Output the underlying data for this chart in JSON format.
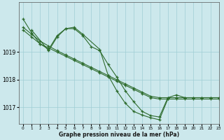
{
  "xlabel": "Graphe pression niveau de la mer (hPa)",
  "background_color": "#cce8ec",
  "grid_color": "#9fcdd4",
  "line_color": "#2d6b2d",
  "xlim": [
    -0.5,
    23
  ],
  "ylim": [
    1016.4,
    1020.8
  ],
  "yticks": [
    1017,
    1018,
    1019
  ],
  "xticks": [
    0,
    1,
    2,
    3,
    4,
    5,
    6,
    7,
    8,
    9,
    10,
    11,
    12,
    13,
    14,
    15,
    16,
    17,
    18,
    19,
    20,
    21,
    22,
    23
  ],
  "line_straight1_x": [
    0,
    1,
    2,
    3,
    4,
    5,
    6,
    7,
    8,
    9,
    10,
    11,
    12,
    13,
    14,
    15,
    16,
    17,
    18,
    19,
    20,
    21,
    22,
    23
  ],
  "line_straight1_y": [
    1019.8,
    1019.55,
    1019.3,
    1019.15,
    1019.0,
    1018.85,
    1018.7,
    1018.55,
    1018.4,
    1018.25,
    1018.1,
    1017.95,
    1017.8,
    1017.65,
    1017.5,
    1017.35,
    1017.3,
    1017.3,
    1017.3,
    1017.3,
    1017.3,
    1017.3,
    1017.3,
    1017.3
  ],
  "line_straight2_x": [
    0,
    1,
    2,
    3,
    4,
    5,
    6,
    7,
    8,
    9,
    10,
    11,
    12,
    13,
    14,
    15,
    16,
    17,
    18,
    19,
    20,
    21,
    22,
    23
  ],
  "line_straight2_y": [
    1019.9,
    1019.65,
    1019.4,
    1019.22,
    1019.05,
    1018.9,
    1018.75,
    1018.6,
    1018.45,
    1018.3,
    1018.15,
    1018.0,
    1017.85,
    1017.7,
    1017.55,
    1017.4,
    1017.35,
    1017.35,
    1017.35,
    1017.35,
    1017.35,
    1017.35,
    1017.35,
    1017.35
  ],
  "line_wavy1_x": [
    0,
    1,
    2,
    3,
    4,
    5,
    6,
    7,
    8,
    9,
    10,
    11,
    12,
    13,
    14,
    15,
    16,
    17,
    18,
    19,
    20,
    21,
    22,
    23
  ],
  "line_wavy1_y": [
    1020.2,
    1019.7,
    1019.3,
    1019.1,
    1019.6,
    1019.85,
    1019.85,
    1019.6,
    1019.2,
    1019.05,
    1018.55,
    1018.1,
    1017.6,
    1017.2,
    1016.85,
    1016.7,
    1016.65,
    1017.35,
    1017.45,
    1017.35,
    1017.35,
    1017.35,
    1017.35,
    1017.35
  ],
  "line_wavy2_x": [
    1,
    3,
    4,
    5,
    6,
    7,
    9,
    10,
    11,
    12,
    13,
    14,
    15,
    16,
    17
  ],
  "line_wavy2_y": [
    1019.8,
    1019.05,
    1019.55,
    1019.85,
    1019.9,
    1019.65,
    1019.1,
    1018.15,
    1017.6,
    1017.15,
    1016.85,
    1016.72,
    1016.62,
    1016.55,
    1017.3
  ]
}
